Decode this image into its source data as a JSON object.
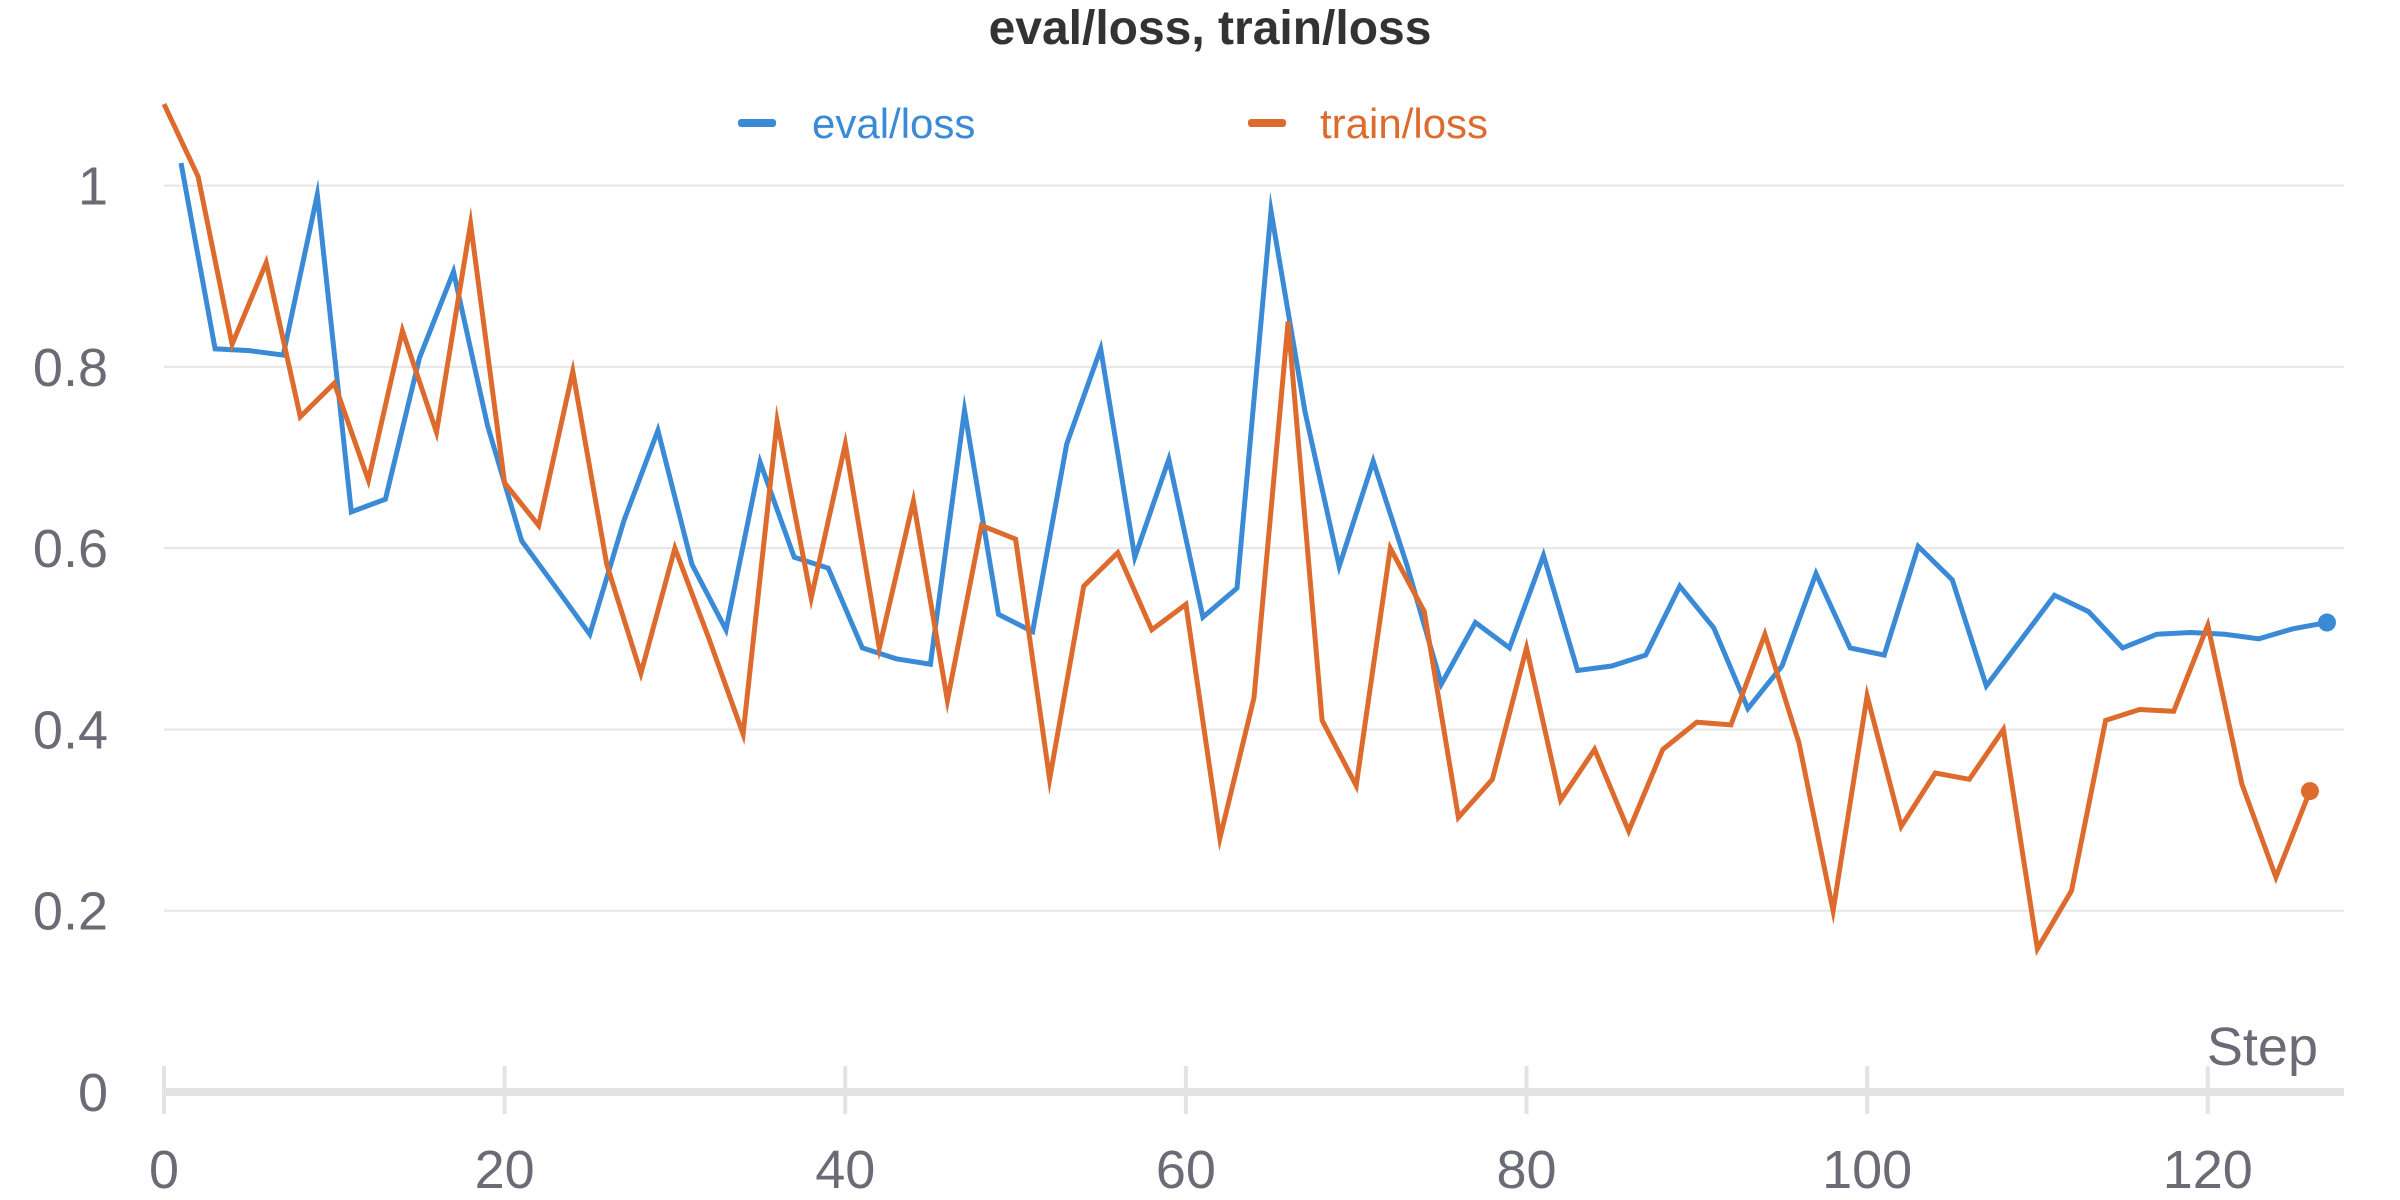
{
  "chart_data": {
    "type": "line",
    "title": "eval/loss, train/loss",
    "xlabel": "Step",
    "ylabel": "",
    "xlim": [
      0,
      128
    ],
    "ylim": [
      0,
      1.1
    ],
    "x_ticks": [
      0,
      20,
      40,
      60,
      80,
      100,
      120
    ],
    "y_ticks": [
      0,
      0.2,
      0.4,
      0.6,
      0.8,
      1
    ],
    "y_tick_labels": [
      "0",
      "0.2",
      "0.4",
      "0.6",
      "0.8",
      "1"
    ],
    "grid": true,
    "legend_position": "top-center",
    "series": [
      {
        "name": "eval/loss",
        "color": "#3a8ad6",
        "x": [
          1,
          3,
          5,
          7,
          9,
          11,
          13,
          15,
          17,
          19,
          21,
          23,
          25,
          27,
          29,
          31,
          33,
          35,
          37,
          39,
          41,
          43,
          45,
          47,
          49,
          51,
          53,
          55,
          57,
          59,
          61,
          63,
          65,
          67,
          69,
          71,
          73,
          75,
          77,
          79,
          81,
          83,
          85,
          87,
          89,
          91,
          93,
          95,
          97,
          99,
          101,
          103,
          105,
          107,
          109,
          111,
          113,
          115,
          117,
          119,
          121,
          123,
          125,
          127
        ],
        "y": [
          1.025,
          0.82,
          0.818,
          0.813,
          0.99,
          0.64,
          0.654,
          0.81,
          0.905,
          0.735,
          0.608,
          0.557,
          0.505,
          0.63,
          0.73,
          0.582,
          0.51,
          0.695,
          0.59,
          0.578,
          0.49,
          0.478,
          0.472,
          0.752,
          0.527,
          0.508,
          0.715,
          0.82,
          0.59,
          0.698,
          0.524,
          0.556,
          0.972,
          0.75,
          0.58,
          0.696,
          0.58,
          0.45,
          0.518,
          0.49,
          0.592,
          0.465,
          0.47,
          0.482,
          0.558,
          0.512,
          0.423,
          0.47,
          0.572,
          0.49,
          0.482,
          0.602,
          0.565,
          0.448,
          0.498,
          0.548,
          0.53,
          0.49,
          0.505,
          0.507,
          0.505,
          0.5,
          0.511,
          0.518
        ]
      },
      {
        "name": "train/loss",
        "color": "#dd6b2e",
        "x": [
          0,
          2,
          4,
          6,
          8,
          10,
          12,
          14,
          16,
          18,
          20,
          22,
          24,
          26,
          28,
          30,
          32,
          34,
          36,
          38,
          40,
          42,
          44,
          46,
          48,
          50,
          52,
          54,
          56,
          58,
          60,
          62,
          64,
          66,
          68,
          70,
          72,
          74,
          76,
          78,
          80,
          82,
          84,
          86,
          88,
          90,
          92,
          94,
          96,
          98,
          100,
          102,
          104,
          106,
          108,
          110,
          112,
          114,
          116,
          118,
          120,
          122,
          124,
          126
        ],
        "y": [
          1.09,
          1.01,
          0.825,
          0.915,
          0.745,
          0.782,
          0.675,
          0.84,
          0.728,
          0.958,
          0.672,
          0.625,
          0.795,
          0.582,
          0.462,
          0.6,
          0.5,
          0.395,
          0.74,
          0.545,
          0.715,
          0.49,
          0.652,
          0.432,
          0.625,
          0.61,
          0.345,
          0.558,
          0.595,
          0.51,
          0.538,
          0.28,
          0.435,
          0.85,
          0.41,
          0.338,
          0.6,
          0.53,
          0.303,
          0.345,
          0.49,
          0.322,
          0.378,
          0.288,
          0.378,
          0.408,
          0.405,
          0.505,
          0.385,
          0.2,
          0.437,
          0.293,
          0.352,
          0.345,
          0.4,
          0.158,
          0.222,
          0.41,
          0.422,
          0.42,
          0.515,
          0.34,
          0.237,
          0.332
        ]
      }
    ]
  }
}
